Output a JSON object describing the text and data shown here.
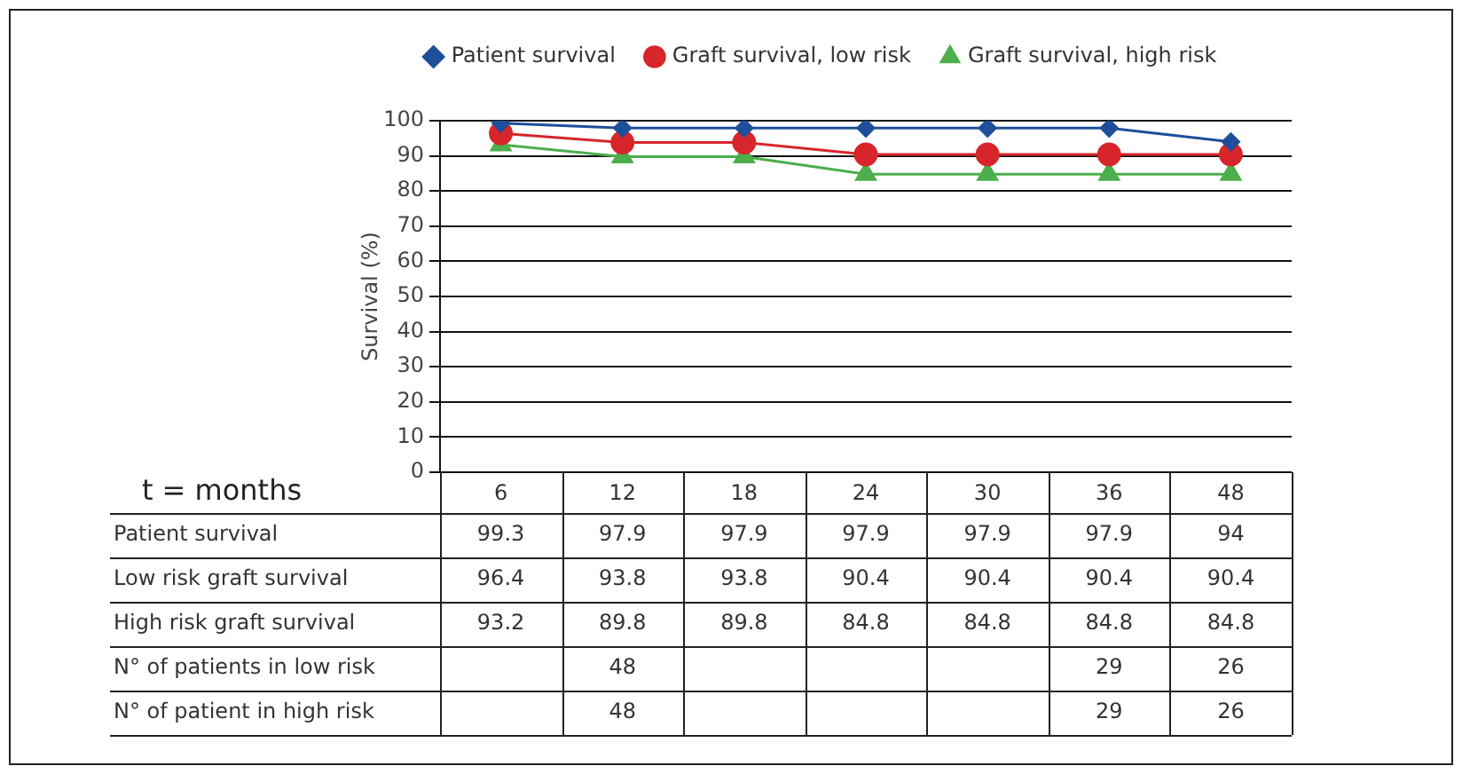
{
  "chart_data": {
    "type": "line",
    "ylabel": "Survival (%)",
    "xlabel": "t = months",
    "categories": [
      "6",
      "12",
      "18",
      "24",
      "30",
      "36",
      "48"
    ],
    "series": [
      {
        "name": "Patient survival",
        "color": "#1f4e9a",
        "marker": "diamond",
        "values": [
          99.3,
          97.9,
          97.9,
          97.9,
          97.9,
          97.9,
          94
        ]
      },
      {
        "name": "Graft survival, low risk",
        "color": "#d7262b",
        "marker": "circle",
        "values": [
          96.4,
          93.8,
          93.8,
          90.4,
          90.4,
          90.4,
          90.4
        ]
      },
      {
        "name": "Graft survival, high risk",
        "color": "#4cae4c",
        "marker": "triangle",
        "values": [
          93.2,
          89.8,
          89.8,
          84.8,
          84.8,
          84.8,
          84.8
        ]
      }
    ],
    "ylim": [
      0,
      100
    ],
    "yticks": [
      0,
      10,
      20,
      30,
      40,
      50,
      60,
      70,
      80,
      90,
      100
    ],
    "grid": "y",
    "legend": "top",
    "data_labels": true,
    "annotations": [
      "Patient survival",
      "Low risk graft survival",
      "High risk graft survival",
      "N° of patients in low risk\t\t48\t\t\t\t29\t26",
      "N° of patient in high risk\t\t48\t\t\t\t29\t26"
    ]
  }
}
